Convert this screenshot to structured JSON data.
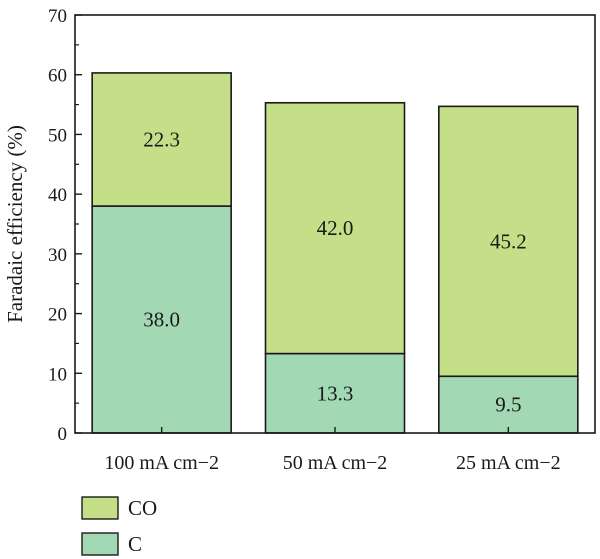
{
  "chart_data": {
    "type": "bar",
    "stacked": true,
    "categories": [
      "100 mA cm−2",
      "50 mA cm−2",
      "25 mA cm−2"
    ],
    "series": [
      {
        "name": "C",
        "values": [
          38.0,
          13.3,
          9.5
        ],
        "color": "#a2d9b4"
      },
      {
        "name": "CO",
        "values": [
          22.3,
          42.0,
          45.2
        ],
        "color": "#c4df88"
      }
    ],
    "data_labels": [
      [
        "38.0",
        "13.3",
        "9.5"
      ],
      [
        "22.3",
        "42.0",
        "45.2"
      ]
    ],
    "ylabel": "Faradaic efficiency (%)",
    "xlabel": "",
    "ylim": [
      0,
      70
    ],
    "yticks": [
      0,
      10,
      20,
      30,
      40,
      50,
      60,
      70
    ],
    "legend": {
      "placement": "bottom-left",
      "order": [
        "CO",
        "C"
      ]
    },
    "grid": false
  }
}
